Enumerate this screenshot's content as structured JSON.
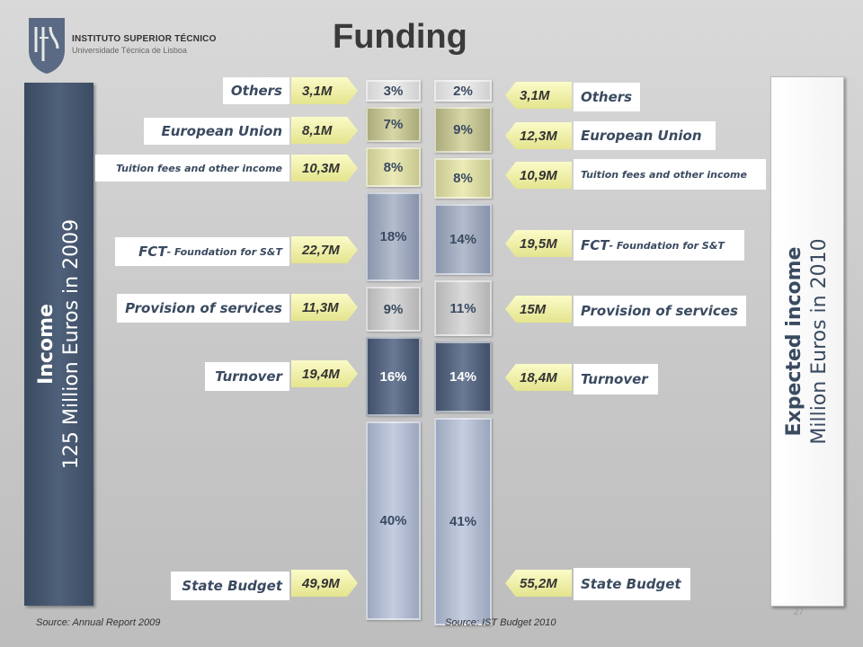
{
  "header": {
    "institution": "INSTITUTO SUPERIOR TÉCNICO",
    "university": "Universidade Técnica de Lisboa",
    "title": "Funding"
  },
  "left_panel": {
    "title": "Income",
    "subtitle": "125 Million Euros in 2009"
  },
  "right_panel": {
    "title": "Expected income",
    "subtitle": "Million Euros in 2010"
  },
  "colors": {
    "panel_dark": "#4a5a74",
    "tag_yellow": "#f5f5b0",
    "label_text": "#3a4a60",
    "seg_gray_light": "#c6c6c6",
    "seg_khaki": "#c9c98e",
    "seg_blue_gray": "#9aa6bc",
    "seg_gray_mid": "#b9b9b9",
    "seg_dark_blue": "#5a6a84"
  },
  "chart_data": [
    {
      "type": "bar",
      "stacked": true,
      "title": "Income 2009",
      "series": [
        {
          "name": "Others",
          "percent": 3,
          "value": "3,1M"
        },
        {
          "name": "European Union",
          "percent": 7,
          "value": "8,1M"
        },
        {
          "name": "Tuition fees and other income",
          "percent": 8,
          "value": "10,3M"
        },
        {
          "name": "FCT - Foundation for S&T",
          "percent": 18,
          "value": "22,7M"
        },
        {
          "name": "Provision of services",
          "percent": 9,
          "value": "11,3M"
        },
        {
          "name": "Turnover",
          "percent": 16,
          "value": "19,4M"
        },
        {
          "name": "State Budget",
          "percent": 40,
          "value": "49,9M"
        }
      ]
    },
    {
      "type": "bar",
      "stacked": true,
      "title": "Expected income 2010",
      "series": [
        {
          "name": "Others",
          "percent": 2,
          "value": "3,1M"
        },
        {
          "name": "European Union",
          "percent": 9,
          "value": "12,3M"
        },
        {
          "name": "Tuition fees and other income",
          "percent": 8,
          "value": "10,9M"
        },
        {
          "name": "FCT - Foundation for S&T",
          "percent": 14,
          "value": "19,5M"
        },
        {
          "name": "Provision of services",
          "percent": 11,
          "value": "15M"
        },
        {
          "name": "Turnover",
          "percent": 14,
          "value": "18,4M"
        },
        {
          "name": "State Budget",
          "percent": 41,
          "value": "55,2M"
        }
      ]
    }
  ],
  "labels": {
    "others": "Others",
    "eu": "European Union",
    "tuition": "Tuition fees and other income",
    "fct_main": "FCT",
    "fct_sub": " - Foundation for S&T",
    "services": "Provision of services",
    "turnover": "Turnover",
    "state": "State Budget"
  },
  "values_2009": {
    "others": "3,1M",
    "eu": "8,1M",
    "tuition": "10,3M",
    "fct": "22,7M",
    "services": "11,3M",
    "turnover": "19,4M",
    "state": "49,9M"
  },
  "values_2010": {
    "others": "3,1M",
    "eu": "12,3M",
    "tuition": "10,9M",
    "fct": "19,5M",
    "services": "15M",
    "turnover": "18,4M",
    "state": "55,2M"
  },
  "sources": {
    "left": "Source: Annual Report 2009",
    "right": "Source: IST Budget 2010"
  },
  "page_number": "27"
}
